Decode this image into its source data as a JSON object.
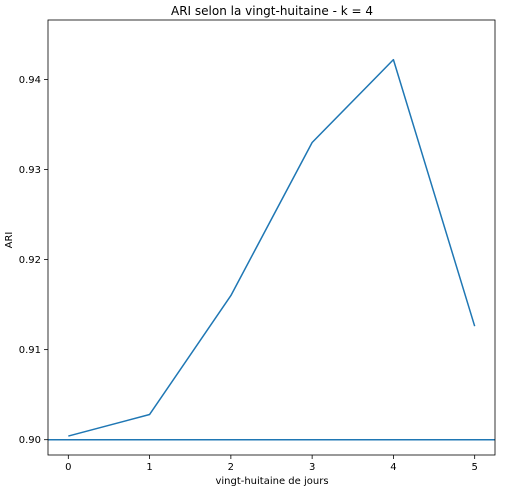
{
  "chart_data": {
    "type": "line",
    "title": "ARI selon la vingt-huitaine - k = 4",
    "xlabel": "vingt-huitaine de jours",
    "ylabel": "ARI",
    "x": [
      0,
      1,
      2,
      3,
      4,
      5
    ],
    "series": [
      {
        "values": [
          0.9004,
          0.9028,
          0.916,
          0.933,
          0.9422,
          0.9126
        ],
        "color": "#1f77b4"
      }
    ],
    "hline": {
      "y": 0.9,
      "color": "#1f77b4"
    },
    "xlim": [
      -0.25,
      5.25
    ],
    "ylim": [
      0.8983,
      0.9466
    ],
    "xticks": [
      0,
      1,
      2,
      3,
      4,
      5
    ],
    "yticks": [
      0.9,
      0.91,
      0.92,
      0.93,
      0.94
    ],
    "ytick_labels": [
      "0.90",
      "0.91",
      "0.92",
      "0.93",
      "0.94"
    ],
    "grid": false
  }
}
